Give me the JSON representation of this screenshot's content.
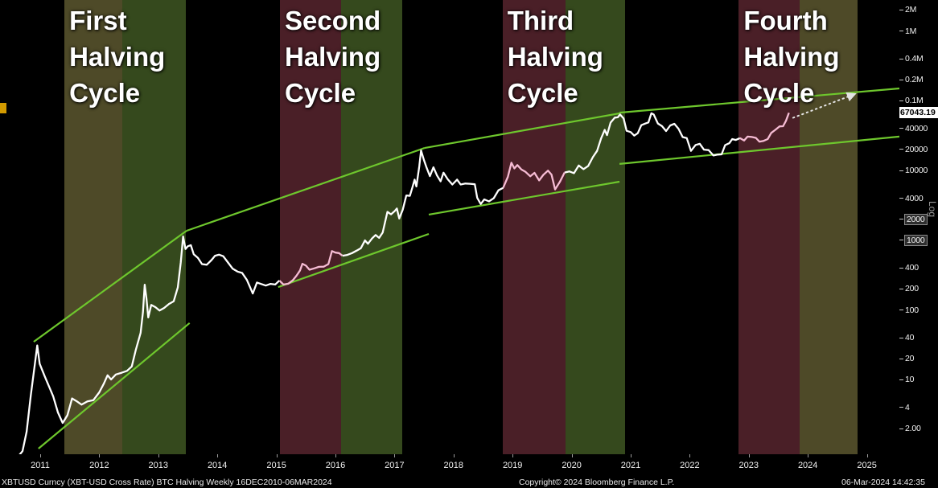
{
  "status_bar": {
    "left": "XBTUSD Curncy (XBT-USD Cross Rate) BTC Halving  Weekly 16DEC2010-06MAR2024",
    "center": "Copyright© 2024 Bloomberg Finance L.P.",
    "right": "06-Mar-2024 14:42:35"
  },
  "y_axis": {
    "scale_label": "Log",
    "last_price": {
      "label": "67043.19",
      "value": 67043.19
    },
    "ticks": [
      {
        "label": "2M",
        "value": 2000000
      },
      {
        "label": "1M",
        "value": 1000000
      },
      {
        "label": "0.4M",
        "value": 400000
      },
      {
        "label": "0.2M",
        "value": 200000
      },
      {
        "label": "0.1M",
        "value": 100000
      },
      {
        "label": "40000",
        "value": 40000
      },
      {
        "label": "20000",
        "value": 20000
      },
      {
        "label": "10000",
        "value": 10000
      },
      {
        "label": "4000",
        "value": 4000
      },
      {
        "label": "2000",
        "value": 2000,
        "boxed": true
      },
      {
        "label": "1000",
        "value": 1000,
        "boxed": true
      },
      {
        "label": "400",
        "value": 400
      },
      {
        "label": "200",
        "value": 200
      },
      {
        "label": "100",
        "value": 100
      },
      {
        "label": "40",
        "value": 40
      },
      {
        "label": "20",
        "value": 20
      },
      {
        "label": "10",
        "value": 10
      },
      {
        "label": "4",
        "value": 4
      },
      {
        "label": "2.00",
        "value": 2
      }
    ]
  },
  "x_axis": {
    "years": [
      "2011",
      "2012",
      "2013",
      "2014",
      "2015",
      "2016",
      "2017",
      "2018",
      "2019",
      "2020",
      "2021",
      "2022",
      "2023",
      "2024",
      "2025"
    ]
  },
  "chart_data": {
    "type": "line",
    "y_scale": "log",
    "ylim": [
      2,
      2000000
    ],
    "x_range_years": [
      2010.8,
      2026.05
    ],
    "band_colors": {
      "olive": "#4e4a28",
      "green": "#35491d",
      "maroon": "#4a1f27"
    },
    "line_colors": {
      "main": "#ffffff",
      "pre_halving_highlight": "#f6bcd4",
      "channel": "#6ec72d"
    },
    "cycles": [
      {
        "name": "First Halving Cycle",
        "pre": [
          2011.91,
          2012.89
        ],
        "pre_color": "olive",
        "post": [
          2012.89,
          2013.97
        ],
        "post_color": "green"
      },
      {
        "name": "Second Halving Cycle",
        "pre": [
          2015.56,
          2016.59
        ],
        "pre_color": "maroon",
        "post": [
          2016.59,
          2017.63
        ],
        "post_color": "green"
      },
      {
        "name": "Third Halving Cycle",
        "pre": [
          2019.33,
          2020.4
        ],
        "pre_color": "maroon",
        "post": [
          2020.4,
          2021.41
        ],
        "post_color": "green"
      },
      {
        "name": "Fourth Halving Cycle",
        "pre": [
          2023.33,
          2024.36
        ],
        "pre_color": "maroon",
        "post": [
          2024.36,
          2025.34
        ],
        "post_color": "olive"
      }
    ],
    "channel_lines": [
      [
        2011.39,
        35,
        2013.98,
        1368
      ],
      [
        2011.47,
        1.03,
        2014.03,
        65
      ],
      [
        2013.98,
        1368,
        2018.01,
        21000
      ],
      [
        2015.53,
        213,
        2018.08,
        1230
      ],
      [
        2018.01,
        21000,
        2021.31,
        65800
      ],
      [
        2018.08,
        2330,
        2021.31,
        6900
      ],
      [
        2021.31,
        67500,
        2026.05,
        150000
      ],
      [
        2021.31,
        12400,
        2026.05,
        30600
      ]
    ],
    "projection_arrow": {
      "from": [
        2024.25,
        57000
      ],
      "to": [
        2025.3,
        125000
      ]
    },
    "series": [
      {
        "name": "XBTUSD Curncy (XBT-USD Cross Rate)",
        "points": [
          [
            2011.13,
            0.8
          ],
          [
            2011.2,
            0.95
          ],
          [
            2011.27,
            1.8
          ],
          [
            2011.34,
            6
          ],
          [
            2011.41,
            17
          ],
          [
            2011.45,
            31
          ],
          [
            2011.49,
            17
          ],
          [
            2011.53,
            14
          ],
          [
            2011.58,
            11
          ],
          [
            2011.65,
            8
          ],
          [
            2011.72,
            5.8
          ],
          [
            2011.8,
            3.4
          ],
          [
            2011.88,
            2.4
          ],
          [
            2011.96,
            3.1
          ],
          [
            2012.04,
            5.4
          ],
          [
            2012.12,
            4.9
          ],
          [
            2012.2,
            4.4
          ],
          [
            2012.3,
            4.9
          ],
          [
            2012.4,
            5.1
          ],
          [
            2012.5,
            6.6
          ],
          [
            2012.58,
            8.9
          ],
          [
            2012.64,
            11.6
          ],
          [
            2012.7,
            10.1
          ],
          [
            2012.78,
            11.9
          ],
          [
            2012.88,
            12.6
          ],
          [
            2012.97,
            13.4
          ],
          [
            2013.05,
            15.5
          ],
          [
            2013.12,
            27
          ],
          [
            2013.2,
            47
          ],
          [
            2013.24,
            93
          ],
          [
            2013.27,
            230
          ],
          [
            2013.3,
            145
          ],
          [
            2013.33,
            78
          ],
          [
            2013.38,
            118
          ],
          [
            2013.45,
            110
          ],
          [
            2013.52,
            98
          ],
          [
            2013.6,
            107
          ],
          [
            2013.68,
            122
          ],
          [
            2013.76,
            133
          ],
          [
            2013.83,
            210
          ],
          [
            2013.88,
            480
          ],
          [
            2013.92,
            1130
          ],
          [
            2013.96,
            750
          ],
          [
            2014.0,
            820
          ],
          [
            2014.05,
            850
          ],
          [
            2014.1,
            630
          ],
          [
            2014.17,
            560
          ],
          [
            2014.24,
            455
          ],
          [
            2014.32,
            445
          ],
          [
            2014.4,
            520
          ],
          [
            2014.46,
            600
          ],
          [
            2014.53,
            620
          ],
          [
            2014.6,
            590
          ],
          [
            2014.68,
            480
          ],
          [
            2014.76,
            390
          ],
          [
            2014.84,
            355
          ],
          [
            2014.92,
            340
          ],
          [
            2015.0,
            270
          ],
          [
            2015.05,
            215
          ],
          [
            2015.1,
            172
          ],
          [
            2015.17,
            248
          ],
          [
            2015.24,
            236
          ],
          [
            2015.32,
            224
          ],
          [
            2015.4,
            237
          ],
          [
            2015.48,
            232
          ],
          [
            2015.55,
            265
          ],
          [
            2015.62,
            232
          ],
          [
            2015.7,
            238
          ],
          [
            2015.78,
            268
          ],
          [
            2015.84,
            310
          ],
          [
            2015.9,
            370
          ],
          [
            2015.94,
            460
          ],
          [
            2016.0,
            432
          ],
          [
            2016.06,
            378
          ],
          [
            2016.14,
            395
          ],
          [
            2016.22,
            416
          ],
          [
            2016.3,
            418
          ],
          [
            2016.38,
            455
          ],
          [
            2016.44,
            700
          ],
          [
            2016.5,
            665
          ],
          [
            2016.56,
            655
          ],
          [
            2016.62,
            600
          ],
          [
            2016.7,
            615
          ],
          [
            2016.78,
            655
          ],
          [
            2016.86,
            710
          ],
          [
            2016.93,
            770
          ],
          [
            2017.0,
            995
          ],
          [
            2017.05,
            890
          ],
          [
            2017.12,
            1060
          ],
          [
            2017.18,
            1190
          ],
          [
            2017.24,
            1080
          ],
          [
            2017.3,
            1290
          ],
          [
            2017.38,
            2550
          ],
          [
            2017.44,
            2350
          ],
          [
            2017.5,
            2600
          ],
          [
            2017.54,
            2850
          ],
          [
            2017.58,
            2050
          ],
          [
            2017.64,
            2750
          ],
          [
            2017.7,
            4390
          ],
          [
            2017.76,
            4330
          ],
          [
            2017.8,
            5600
          ],
          [
            2017.84,
            7400
          ],
          [
            2017.87,
            5900
          ],
          [
            2017.92,
            11500
          ],
          [
            2017.95,
            19350
          ],
          [
            2018.0,
            14000
          ],
          [
            2018.04,
            11200
          ],
          [
            2018.1,
            8300
          ],
          [
            2018.16,
            11100
          ],
          [
            2018.22,
            8500
          ],
          [
            2018.28,
            7000
          ],
          [
            2018.33,
            9300
          ],
          [
            2018.4,
            7500
          ],
          [
            2018.48,
            6300
          ],
          [
            2018.56,
            7400
          ],
          [
            2018.62,
            6300
          ],
          [
            2018.7,
            6500
          ],
          [
            2018.78,
            6450
          ],
          [
            2018.86,
            6350
          ],
          [
            2018.9,
            4050
          ],
          [
            2018.96,
            3300
          ],
          [
            2019.02,
            3850
          ],
          [
            2019.1,
            3600
          ],
          [
            2019.18,
            4000
          ],
          [
            2019.26,
            5200
          ],
          [
            2019.34,
            5650
          ],
          [
            2019.42,
            8100
          ],
          [
            2019.48,
            12900
          ],
          [
            2019.53,
            10700
          ],
          [
            2019.58,
            11950
          ],
          [
            2019.65,
            10300
          ],
          [
            2019.72,
            9550
          ],
          [
            2019.8,
            8250
          ],
          [
            2019.87,
            9250
          ],
          [
            2019.95,
            7200
          ],
          [
            2020.02,
            8650
          ],
          [
            2020.1,
            9950
          ],
          [
            2020.16,
            8700
          ],
          [
            2020.22,
            5350
          ],
          [
            2020.3,
            6850
          ],
          [
            2020.38,
            9350
          ],
          [
            2020.46,
            9700
          ],
          [
            2020.54,
            9150
          ],
          [
            2020.62,
            11800
          ],
          [
            2020.7,
            10450
          ],
          [
            2020.78,
            11600
          ],
          [
            2020.86,
            15550
          ],
          [
            2020.93,
            19100
          ],
          [
            2021.0,
            29000
          ],
          [
            2021.06,
            38100
          ],
          [
            2021.1,
            32100
          ],
          [
            2021.16,
            48500
          ],
          [
            2021.23,
            57200
          ],
          [
            2021.28,
            57800
          ],
          [
            2021.32,
            63500
          ],
          [
            2021.38,
            55800
          ],
          [
            2021.43,
            37000
          ],
          [
            2021.5,
            35500
          ],
          [
            2021.56,
            31600
          ],
          [
            2021.62,
            34200
          ],
          [
            2021.68,
            44600
          ],
          [
            2021.75,
            47200
          ],
          [
            2021.8,
            48800
          ],
          [
            2021.85,
            66000
          ],
          [
            2021.89,
            63500
          ],
          [
            2021.96,
            47200
          ],
          [
            2022.03,
            43200
          ],
          [
            2022.1,
            36700
          ],
          [
            2022.17,
            44200
          ],
          [
            2022.24,
            46600
          ],
          [
            2022.31,
            39600
          ],
          [
            2022.38,
            30100
          ],
          [
            2022.45,
            29100
          ],
          [
            2022.52,
            19100
          ],
          [
            2022.6,
            23200
          ],
          [
            2022.67,
            24100
          ],
          [
            2022.74,
            19900
          ],
          [
            2022.82,
            19600
          ],
          [
            2022.9,
            16400
          ],
          [
            2022.97,
            16900
          ],
          [
            2023.04,
            17000
          ],
          [
            2023.1,
            23100
          ],
          [
            2023.17,
            24600
          ],
          [
            2023.22,
            28200
          ],
          [
            2023.28,
            27400
          ],
          [
            2023.35,
            29100
          ],
          [
            2023.42,
            26900
          ],
          [
            2023.48,
            30600
          ],
          [
            2023.55,
            30200
          ],
          [
            2023.62,
            29300
          ],
          [
            2023.68,
            25900
          ],
          [
            2023.75,
            26600
          ],
          [
            2023.82,
            28200
          ],
          [
            2023.88,
            34600
          ],
          [
            2023.95,
            38200
          ],
          [
            2024.02,
            42800
          ],
          [
            2024.08,
            43100
          ],
          [
            2024.13,
            51500
          ],
          [
            2024.18,
            67043.19
          ]
        ]
      }
    ]
  }
}
